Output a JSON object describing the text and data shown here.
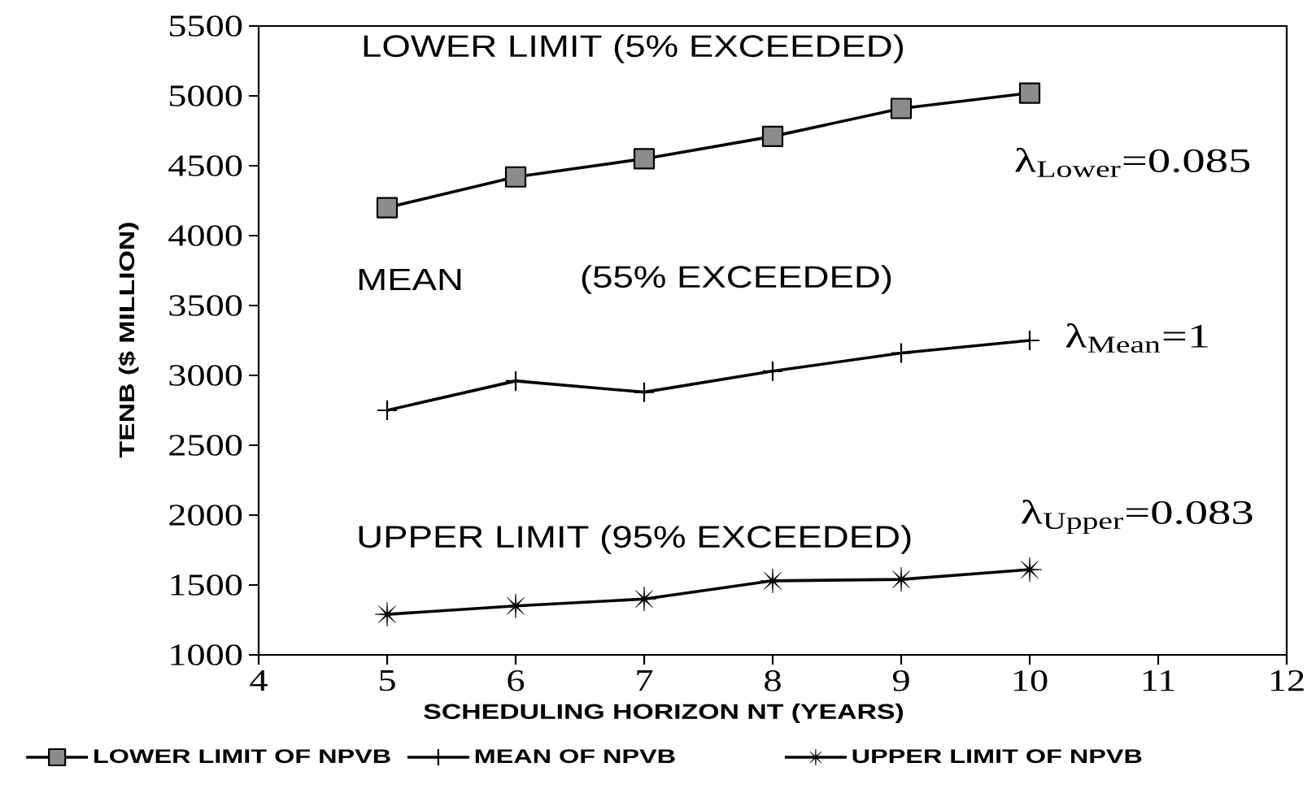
{
  "chart_data": {
    "type": "line",
    "xlabel": "SCHEDULING HORIZON NT (YEARS)",
    "ylabel": "TENB ($ MILLION)",
    "x": [
      5,
      6,
      7,
      8,
      9,
      10
    ],
    "series": [
      {
        "name": "LOWER LIMIT OF NPVB",
        "color": "#000000",
        "marker": "square",
        "values": [
          4200,
          4420,
          4550,
          4710,
          4910,
          5020
        ]
      },
      {
        "name": "MEAN OF NPVB",
        "color": "#000000",
        "marker": "cross",
        "values": [
          2750,
          2960,
          2880,
          3030,
          3160,
          3250
        ]
      },
      {
        "name": "UPPER LIMIT OF NPVB",
        "color": "#000000",
        "marker": "star",
        "values": [
          1290,
          1350,
          1400,
          1530,
          1540,
          1610
        ]
      }
    ],
    "xlim": [
      4,
      12
    ],
    "ylim": [
      1000,
      5500
    ],
    "xticks": [
      4,
      5,
      6,
      7,
      8,
      9,
      10,
      11,
      12
    ],
    "yticks": [
      1000,
      1500,
      2000,
      2500,
      3000,
      3500,
      4000,
      4500,
      5000,
      5500
    ],
    "legend": "bottom",
    "line_style": "solid",
    "annotations": [
      "LOWER LIMIT (5% EXCEEDED)",
      "MEAN",
      "(55% EXCEEDED)",
      "UPPER LIMIT (95% EXCEEDED)",
      "λ$_{Lower}$=0.085",
      "λ$_{Mean}$=1",
      "λ$_{Upper}$=0.083"
    ]
  }
}
